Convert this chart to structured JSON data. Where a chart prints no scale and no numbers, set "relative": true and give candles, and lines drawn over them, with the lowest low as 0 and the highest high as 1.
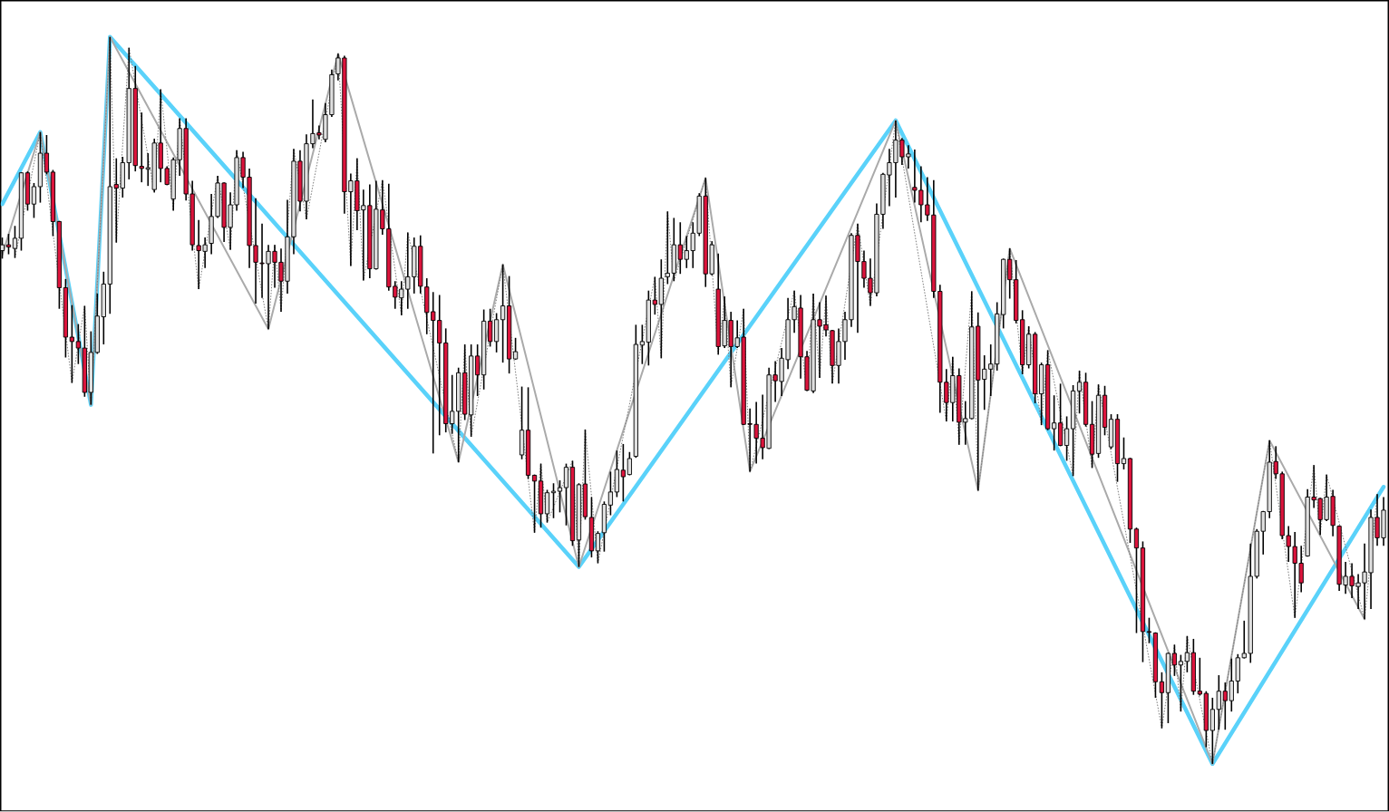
{
  "chart_data": {
    "type": "candlestick",
    "relative": true,
    "categories": [
      null,
      null,
      null,
      null,
      null,
      null,
      null,
      null,
      null,
      null,
      null,
      null,
      null,
      null,
      null,
      null,
      null,
      null,
      null,
      null,
      null,
      null,
      null,
      null,
      null,
      null,
      null,
      null,
      null,
      null,
      null,
      null,
      null,
      null,
      null,
      null,
      null,
      null,
      null,
      null,
      null,
      null,
      null,
      null,
      null,
      null,
      null,
      null,
      null,
      null,
      null,
      null,
      null,
      null,
      null,
      null,
      null,
      null,
      null,
      null,
      null,
      null,
      null,
      null,
      null,
      null,
      null,
      null,
      null,
      null,
      null,
      null,
      null,
      null,
      null,
      null,
      null,
      null,
      null,
      null,
      null,
      null,
      null,
      null,
      null,
      null,
      null,
      null,
      null,
      null,
      null,
      null,
      null,
      null,
      null,
      null,
      null,
      null,
      null,
      null,
      null,
      null,
      null,
      null,
      null,
      null,
      null,
      null,
      null,
      null,
      null,
      null,
      null,
      null,
      null,
      null,
      null,
      null,
      null,
      null,
      null,
      null,
      null,
      null,
      null,
      null,
      null,
      null,
      null,
      null,
      null,
      null,
      null,
      null,
      null,
      null,
      null,
      null,
      null,
      null,
      null,
      null,
      null,
      null,
      null,
      null,
      null,
      null,
      null,
      null,
      null,
      null,
      null,
      null,
      null,
      null,
      null,
      null,
      null,
      null,
      null,
      null,
      null,
      null,
      null,
      null,
      null,
      null,
      null,
      null,
      null,
      null,
      null,
      null,
      null,
      null,
      null,
      null,
      null,
      null,
      null,
      null,
      null,
      null,
      null,
      null,
      null,
      null,
      null,
      null,
      null,
      null,
      null,
      null,
      null,
      null,
      null,
      null,
      null,
      null,
      null,
      null,
      null,
      null,
      null,
      null,
      null,
      null,
      null,
      null,
      null,
      null,
      null,
      null,
      null,
      null,
      null,
      null,
      null
    ],
    "ohlc": [
      [
        0.706,
        0.724,
        0.695,
        0.714
      ],
      [
        0.714,
        0.729,
        0.701,
        0.711
      ],
      [
        0.709,
        0.74,
        0.696,
        0.723
      ],
      [
        0.723,
        0.814,
        0.706,
        0.813
      ],
      [
        0.813,
        0.815,
        0.761,
        0.77
      ],
      [
        0.77,
        0.799,
        0.751,
        0.794
      ],
      [
        0.794,
        0.869,
        0.772,
        0.84
      ],
      [
        0.84,
        0.865,
        0.811,
        0.814
      ],
      [
        0.814,
        0.817,
        0.726,
        0.746
      ],
      [
        0.746,
        0.747,
        0.626,
        0.655
      ],
      [
        0.655,
        0.667,
        0.559,
        0.587
      ],
      [
        0.587,
        0.631,
        0.524,
        0.581
      ],
      [
        0.581,
        0.605,
        0.55,
        0.572
      ],
      [
        0.572,
        0.63,
        0.505,
        0.511
      ],
      [
        0.511,
        0.595,
        0.494,
        0.566
      ],
      [
        0.566,
        0.647,
        0.564,
        0.616
      ],
      [
        0.615,
        0.677,
        0.577,
        0.66
      ],
      [
        0.66,
        1.0,
        0.619,
        0.794
      ],
      [
        0.797,
        0.833,
        0.717,
        0.792
      ],
      [
        0.792,
        0.835,
        0.779,
        0.827
      ],
      [
        0.827,
        0.985,
        0.804,
        0.929
      ],
      [
        0.929,
        0.96,
        0.815,
        0.823
      ],
      [
        0.822,
        0.896,
        0.8,
        0.819
      ],
      [
        0.818,
        0.84,
        0.795,
        0.82
      ],
      [
        0.79,
        0.86,
        0.786,
        0.854
      ],
      [
        0.854,
        0.928,
        0.8,
        0.819
      ],
      [
        0.819,
        0.822,
        0.796,
        0.797
      ],
      [
        0.777,
        0.834,
        0.761,
        0.831
      ],
      [
        0.831,
        0.888,
        0.809,
        0.874
      ],
      [
        0.874,
        0.888,
        0.775,
        0.784
      ],
      [
        0.784,
        0.802,
        0.706,
        0.714
      ],
      [
        0.713,
        0.748,
        0.653,
        0.706
      ],
      [
        0.705,
        0.724,
        0.682,
        0.714
      ],
      [
        0.716,
        0.784,
        0.701,
        0.753
      ],
      [
        0.753,
        0.809,
        0.751,
        0.799
      ],
      [
        0.799,
        0.8,
        0.718,
        0.738
      ],
      [
        0.738,
        0.786,
        0.707,
        0.769
      ],
      [
        0.769,
        0.844,
        0.761,
        0.834
      ],
      [
        0.834,
        0.842,
        0.792,
        0.807
      ],
      [
        0.807,
        0.819,
        0.682,
        0.713
      ],
      [
        0.713,
        0.778,
        0.633,
        0.69
      ],
      [
        0.689,
        0.743,
        0.641,
        0.688
      ],
      [
        0.688,
        0.714,
        0.598,
        0.705
      ],
      [
        0.705,
        0.714,
        0.655,
        0.69
      ],
      [
        0.69,
        0.709,
        0.622,
        0.664
      ],
      [
        0.664,
        0.776,
        0.647,
        0.725
      ],
      [
        0.725,
        0.846,
        0.701,
        0.829
      ],
      [
        0.829,
        0.844,
        0.76,
        0.774
      ],
      [
        0.774,
        0.866,
        0.749,
        0.853
      ],
      [
        0.853,
        0.914,
        0.847,
        0.867
      ],
      [
        0.868,
        0.878,
        0.859,
        0.865
      ],
      [
        0.859,
        0.909,
        0.855,
        0.893
      ],
      [
        0.893,
        0.955,
        0.89,
        0.948
      ],
      [
        0.949,
        0.977,
        0.94,
        0.971
      ],
      [
        0.971,
        0.974,
        0.757,
        0.787
      ],
      [
        0.787,
        0.812,
        0.685,
        0.802
      ],
      [
        0.802,
        0.833,
        0.734,
        0.761
      ],
      [
        0.762,
        0.79,
        0.665,
        0.768
      ],
      [
        0.768,
        0.797,
        0.668,
        0.681
      ],
      [
        0.681,
        0.802,
        0.68,
        0.763
      ],
      [
        0.762,
        0.803,
        0.728,
        0.736
      ],
      [
        0.736,
        0.798,
        0.651,
        0.656
      ],
      [
        0.657,
        0.664,
        0.626,
        0.642
      ],
      [
        0.641,
        0.664,
        0.617,
        0.653
      ],
      [
        0.653,
        0.731,
        0.626,
        0.67
      ],
      [
        0.67,
        0.724,
        0.647,
        0.712
      ],
      [
        0.712,
        0.727,
        0.647,
        0.657
      ],
      [
        0.656,
        0.668,
        0.591,
        0.621
      ],
      [
        0.622,
        0.649,
        0.427,
        0.61
      ],
      [
        0.61,
        0.645,
        0.452,
        0.579
      ],
      [
        0.579,
        0.599,
        0.456,
        0.468
      ],
      [
        0.468,
        0.535,
        0.454,
        0.485
      ],
      [
        0.485,
        0.545,
        0.415,
        0.538
      ],
      [
        0.538,
        0.577,
        0.473,
        0.481
      ],
      [
        0.48,
        0.577,
        0.45,
        0.561
      ],
      [
        0.561,
        0.577,
        0.506,
        0.535
      ],
      [
        0.535,
        0.625,
        0.515,
        0.609
      ],
      [
        0.609,
        0.626,
        0.574,
        0.581
      ],
      [
        0.581,
        0.62,
        0.566,
        0.611
      ],
      [
        0.611,
        0.687,
        0.552,
        0.63
      ],
      [
        0.63,
        0.671,
        0.537,
        0.557
      ],
      [
        0.557,
        0.586,
        0.556,
        0.567
      ],
      [
        0.425,
        0.519,
        0.419,
        0.459
      ],
      [
        0.459,
        0.518,
        0.392,
        0.397
      ],
      [
        0.397,
        0.398,
        0.318,
        0.389
      ],
      [
        0.389,
        0.413,
        0.325,
        0.344
      ],
      [
        0.344,
        0.377,
        0.332,
        0.373
      ],
      [
        0.373,
        0.386,
        0.338,
        0.375
      ],
      [
        0.375,
        0.39,
        0.346,
        0.38
      ],
      [
        0.38,
        0.413,
        0.328,
        0.408
      ],
      [
        0.408,
        0.417,
        0.3,
        0.307
      ],
      [
        0.308,
        0.386,
        0.271,
        0.384
      ],
      [
        0.385,
        0.46,
        0.336,
        0.34
      ],
      [
        0.339,
        0.367,
        0.284,
        0.293
      ],
      [
        0.293,
        0.32,
        0.276,
        0.317
      ],
      [
        0.318,
        0.361,
        0.292,
        0.357
      ],
      [
        0.356,
        0.402,
        0.342,
        0.374
      ],
      [
        0.374,
        0.431,
        0.367,
        0.405
      ],
      [
        0.404,
        0.44,
        0.361,
        0.395
      ],
      [
        0.398,
        0.429,
        0.397,
        0.42
      ],
      [
        0.423,
        0.604,
        0.421,
        0.577
      ],
      [
        0.576,
        0.604,
        0.55,
        0.581
      ],
      [
        0.58,
        0.651,
        0.548,
        0.638
      ],
      [
        0.638,
        0.67,
        0.618,
        0.632
      ],
      [
        0.632,
        0.694,
        0.558,
        0.668
      ],
      [
        0.67,
        0.76,
        0.66,
        0.675
      ],
      [
        0.675,
        0.751,
        0.664,
        0.714
      ],
      [
        0.714,
        0.745,
        0.674,
        0.694
      ],
      [
        0.694,
        0.726,
        0.682,
        0.706
      ],
      [
        0.706,
        0.745,
        0.682,
        0.73
      ],
      [
        0.73,
        0.785,
        0.726,
        0.781
      ],
      [
        0.781,
        0.806,
        0.656,
        0.674
      ],
      [
        0.674,
        0.719,
        0.672,
        0.714
      ],
      [
        0.653,
        0.702,
        0.563,
        0.574
      ],
      [
        0.575,
        0.643,
        0.572,
        0.61
      ],
      [
        0.61,
        0.622,
        0.518,
        0.574
      ],
      [
        0.574,
        0.61,
        0.572,
        0.586
      ],
      [
        0.587,
        0.626,
        0.466,
        0.467
      ],
      [
        0.468,
        0.489,
        0.402,
        0.467
      ],
      [
        0.467,
        0.498,
        0.413,
        0.448
      ],
      [
        0.448,
        0.508,
        0.419,
        0.435
      ],
      [
        0.434,
        0.545,
        0.433,
        0.535
      ],
      [
        0.535,
        0.554,
        0.498,
        0.527
      ],
      [
        0.526,
        0.572,
        0.506,
        0.558
      ],
      [
        0.556,
        0.641,
        0.543,
        0.611
      ],
      [
        0.611,
        0.651,
        0.593,
        0.629
      ],
      [
        0.627,
        0.645,
        0.53,
        0.56
      ],
      [
        0.56,
        0.568,
        0.513,
        0.514
      ],
      [
        0.513,
        0.647,
        0.51,
        0.611
      ],
      [
        0.611,
        0.635,
        0.531,
        0.602
      ],
      [
        0.604,
        0.644,
        0.588,
        0.597
      ],
      [
        0.596,
        0.597,
        0.523,
        0.548
      ],
      [
        0.548,
        0.599,
        0.523,
        0.581
      ],
      [
        0.581,
        0.622,
        0.556,
        0.611
      ],
      [
        0.611,
        0.73,
        0.601,
        0.727
      ],
      [
        0.727,
        0.743,
        0.593,
        0.691
      ],
      [
        0.691,
        0.706,
        0.655,
        0.668
      ],
      [
        0.668,
        0.695,
        0.63,
        0.648
      ],
      [
        0.648,
        0.771,
        0.643,
        0.756
      ],
      [
        0.756,
        0.813,
        0.736,
        0.811
      ],
      [
        0.81,
        0.846,
        0.767,
        0.827
      ],
      [
        0.827,
        0.885,
        0.779,
        0.858
      ],
      [
        0.858,
        0.861,
        0.824,
        0.835
      ],
      [
        0.835,
        0.851,
        0.819,
        0.839
      ],
      [
        0.793,
        0.845,
        0.772,
        0.789
      ],
      [
        0.789,
        0.822,
        0.745,
        0.769
      ],
      [
        0.769,
        0.807,
        0.747,
        0.755
      ],
      [
        0.755,
        0.803,
        0.641,
        0.65
      ],
      [
        0.65,
        0.659,
        0.483,
        0.525
      ],
      [
        0.525,
        0.543,
        0.471,
        0.497
      ],
      [
        0.497,
        0.56,
        0.471,
        0.534
      ],
      [
        0.534,
        0.544,
        0.439,
        0.47
      ],
      [
        0.47,
        0.499,
        0.439,
        0.475
      ],
      [
        0.475,
        0.65,
        0.474,
        0.601
      ],
      [
        0.602,
        0.621,
        0.376,
        0.528
      ],
      [
        0.529,
        0.562,
        0.487,
        0.543
      ],
      [
        0.543,
        0.577,
        0.506,
        0.55
      ],
      [
        0.55,
        0.635,
        0.541,
        0.619
      ],
      [
        0.618,
        0.695,
        0.599,
        0.694
      ],
      [
        0.694,
        0.709,
        0.64,
        0.666
      ],
      [
        0.666,
        0.693,
        0.606,
        0.61
      ],
      [
        0.611,
        0.624,
        0.536,
        0.549
      ],
      [
        0.549,
        0.602,
        0.544,
        0.591
      ],
      [
        0.591,
        0.594,
        0.496,
        0.509
      ],
      [
        0.509,
        0.552,
        0.466,
        0.549
      ],
      [
        0.549,
        0.569,
        0.459,
        0.461
      ],
      [
        0.461,
        0.507,
        0.431,
        0.469
      ],
      [
        0.469,
        0.523,
        0.437,
        0.438
      ],
      [
        0.438,
        0.478,
        0.417,
        0.461
      ],
      [
        0.461,
        0.521,
        0.396,
        0.513
      ],
      [
        0.513,
        0.541,
        0.482,
        0.525
      ],
      [
        0.525,
        0.538,
        0.464,
        0.467
      ],
      [
        0.467,
        0.499,
        0.407,
        0.426
      ],
      [
        0.427,
        0.522,
        0.421,
        0.507
      ],
      [
        0.507,
        0.52,
        0.452,
        0.463
      ],
      [
        0.436,
        0.481,
        0.433,
        0.474
      ],
      [
        0.474,
        0.481,
        0.388,
        0.413
      ],
      [
        0.413,
        0.449,
        0.405,
        0.42
      ],
      [
        0.42,
        0.421,
        0.304,
        0.323
      ],
      [
        0.323,
        0.325,
        0.18,
        0.297
      ],
      [
        0.297,
        0.306,
        0.14,
        0.182
      ],
      [
        0.182,
        0.201,
        0.166,
        0.181
      ],
      [
        0.18,
        0.181,
        0.091,
        0.113
      ],
      [
        0.113,
        0.126,
        0.049,
        0.098
      ],
      [
        0.098,
        0.153,
        0.056,
        0.152
      ],
      [
        0.152,
        0.164,
        0.121,
        0.136
      ],
      [
        0.136,
        0.15,
        0.072,
        0.141
      ],
      [
        0.141,
        0.176,
        0.126,
        0.153
      ],
      [
        0.153,
        0.172,
        0.095,
        0.1
      ],
      [
        0.1,
        0.146,
        0.094,
        0.096
      ],
      [
        0.097,
        0.1,
        0.023,
        0.046
      ],
      [
        0.046,
        0.091,
        0.0,
        0.075
      ],
      [
        0.075,
        0.122,
        0.047,
        0.1
      ],
      [
        0.1,
        0.112,
        0.047,
        0.087
      ],
      [
        0.087,
        0.145,
        0.072,
        0.114
      ],
      [
        0.114,
        0.151,
        0.097,
        0.146
      ],
      [
        0.146,
        0.197,
        0.145,
        0.152
      ],
      [
        0.152,
        0.303,
        0.139,
        0.258
      ],
      [
        0.258,
        0.323,
        0.255,
        0.32
      ],
      [
        0.32,
        0.348,
        0.288,
        0.347
      ],
      [
        0.347,
        0.445,
        0.338,
        0.415
      ],
      [
        0.416,
        0.437,
        0.392,
        0.399
      ],
      [
        0.399,
        0.402,
        0.309,
        0.314
      ],
      [
        0.314,
        0.327,
        0.278,
        0.299
      ],
      [
        0.299,
        0.319,
        0.201,
        0.276
      ],
      [
        0.276,
        0.3,
        0.236,
        0.249
      ],
      [
        0.286,
        0.378,
        0.285,
        0.367
      ],
      [
        0.367,
        0.411,
        0.352,
        0.363
      ],
      [
        0.365,
        0.366,
        0.315,
        0.336
      ],
      [
        0.336,
        0.398,
        0.334,
        0.367
      ],
      [
        0.368,
        0.377,
        0.313,
        0.328
      ],
      [
        0.327,
        0.328,
        0.238,
        0.247
      ],
      [
        0.246,
        0.278,
        0.234,
        0.258
      ],
      [
        0.258,
        0.276,
        0.228,
        0.245
      ],
      [
        0.244,
        0.261,
        0.213,
        0.249
      ],
      [
        0.249,
        0.303,
        0.199,
        0.264
      ],
      [
        0.263,
        0.35,
        0.213,
        0.339
      ],
      [
        0.339,
        0.371,
        0.3,
        0.311
      ],
      [
        0.311,
        0.367,
        0.3,
        0.349
      ]
    ],
    "colors": [
      "#e0e0e0",
      "#dc143c",
      "#e0e0e0",
      "#e0e0e0",
      "#dc143c",
      "#e0e0e0",
      "#e0e0e0",
      "#dc143c",
      "#dc143c",
      "#dc143c",
      "#dc143c",
      "#dc143c",
      "#dc143c",
      "#dc143c",
      "#e0e0e0",
      "#e0e0e0",
      "#e0e0e0",
      "#e0e0e0",
      "#dc143c",
      "#e0e0e0",
      "#e0e0e0",
      "#dc143c",
      "#dc143c",
      "#e0e0e0",
      "#e0e0e0",
      "#dc143c",
      "#dc143c",
      "#e0e0e0",
      "#e0e0e0",
      "#dc143c",
      "#dc143c",
      "#dc143c",
      "#e0e0e0",
      "#e0e0e0",
      "#e0e0e0",
      "#dc143c",
      "#e0e0e0",
      "#e0e0e0",
      "#dc143c",
      "#dc143c",
      "#dc143c",
      "#dc143c",
      "#e0e0e0",
      "#dc143c",
      "#dc143c",
      "#e0e0e0",
      "#e0e0e0",
      "#dc143c",
      "#e0e0e0",
      "#e0e0e0",
      "#dc143c",
      "#e0e0e0",
      "#e0e0e0",
      "#e0e0e0",
      "#dc143c",
      "#e0e0e0",
      "#dc143c",
      "#e0e0e0",
      "#dc143c",
      "#e0e0e0",
      "#dc143c",
      "#dc143c",
      "#dc143c",
      "#e0e0e0",
      "#e0e0e0",
      "#e0e0e0",
      "#dc143c",
      "#dc143c",
      "#dc143c",
      "#dc143c",
      "#dc143c",
      "#e0e0e0",
      "#e0e0e0",
      "#dc143c",
      "#e0e0e0",
      "#dc143c",
      "#e0e0e0",
      "#dc143c",
      "#e0e0e0",
      "#e0e0e0",
      "#dc143c",
      "#e0e0e0",
      "#e0e0e0",
      "#dc143c",
      "#dc143c",
      "#dc143c",
      "#e0e0e0",
      "#e0e0e0",
      "#e0e0e0",
      "#e0e0e0",
      "#dc143c",
      "#e0e0e0",
      "#dc143c",
      "#dc143c",
      "#e0e0e0",
      "#e0e0e0",
      "#e0e0e0",
      "#e0e0e0",
      "#dc143c",
      "#e0e0e0",
      "#e0e0e0",
      "#e0e0e0",
      "#e0e0e0",
      "#dc143c",
      "#e0e0e0",
      "#e0e0e0",
      "#e0e0e0",
      "#dc143c",
      "#e0e0e0",
      "#e0e0e0",
      "#e0e0e0",
      "#dc143c",
      "#e0e0e0",
      "#dc143c",
      "#e0e0e0",
      "#dc143c",
      "#e0e0e0",
      "#dc143c",
      "#dc143c",
      "#dc143c",
      "#dc143c",
      "#e0e0e0",
      "#dc143c",
      "#e0e0e0",
      "#e0e0e0",
      "#e0e0e0",
      "#dc143c",
      "#dc143c",
      "#e0e0e0",
      "#dc143c",
      "#dc143c",
      "#dc143c",
      "#e0e0e0",
      "#e0e0e0",
      "#e0e0e0",
      "#dc143c",
      "#dc143c",
      "#dc143c",
      "#e0e0e0",
      "#e0e0e0",
      "#e0e0e0",
      "#e0e0e0",
      "#dc143c",
      "#e0e0e0",
      "#dc143c",
      "#dc143c",
      "#dc143c",
      "#dc143c",
      "#dc143c",
      "#dc143c",
      "#e0e0e0",
      "#dc143c",
      "#e0e0e0",
      "#e0e0e0",
      "#dc143c",
      "#e0e0e0",
      "#e0e0e0",
      "#e0e0e0",
      "#e0e0e0",
      "#dc143c",
      "#dc143c",
      "#dc143c",
      "#e0e0e0",
      "#dc143c",
      "#e0e0e0",
      "#dc143c",
      "#e0e0e0",
      "#dc143c",
      "#e0e0e0",
      "#e0e0e0",
      "#e0e0e0",
      "#dc143c",
      "#dc143c",
      "#e0e0e0",
      "#dc143c",
      "#e0e0e0",
      "#dc143c",
      "#e0e0e0",
      "#dc143c",
      "#dc143c",
      "#dc143c",
      "#dc143c",
      "#dc143c",
      "#dc143c",
      "#e0e0e0",
      "#dc143c",
      "#e0e0e0",
      "#e0e0e0",
      "#dc143c",
      "#dc143c",
      "#dc143c",
      "#e0e0e0",
      "#e0e0e0",
      "#dc143c",
      "#e0e0e0",
      "#e0e0e0",
      "#e0e0e0",
      "#e0e0e0",
      "#e0e0e0",
      "#e0e0e0",
      "#e0e0e0",
      "#dc143c",
      "#dc143c",
      "#dc143c",
      "#dc143c",
      "#dc143c",
      "#e0e0e0",
      "#dc143c",
      "#dc143c",
      "#e0e0e0",
      "#dc143c",
      "#dc143c",
      "#e0e0e0",
      "#dc143c",
      "#e0e0e0",
      "#e0e0e0",
      "#e0e0e0",
      "#dc143c",
      "#e0e0e0"
    ],
    "series": [
      {
        "type": "line",
        "color": "#5ad2fa",
        "line_style": "solid",
        "values": [
          0.77,
          null,
          null,
          null,
          null,
          null,
          0.869,
          null,
          null,
          null,
          null,
          null,
          null,
          null,
          0.494,
          null,
          null,
          1.0,
          null,
          null,
          null,
          null,
          null,
          null,
          null,
          null,
          null,
          null,
          null,
          null,
          null,
          null,
          null,
          null,
          null,
          null,
          null,
          null,
          null,
          null,
          null,
          null,
          null,
          null,
          null,
          null,
          null,
          null,
          null,
          null,
          null,
          null,
          null,
          null,
          null,
          null,
          null,
          null,
          null,
          null,
          null,
          null,
          null,
          null,
          null,
          null,
          null,
          null,
          null,
          null,
          null,
          null,
          null,
          null,
          null,
          null,
          null,
          null,
          null,
          null,
          null,
          null,
          null,
          null,
          null,
          null,
          null,
          null,
          null,
          null,
          null,
          0.271,
          null,
          null,
          null,
          null,
          null,
          null,
          null,
          null,
          null,
          null,
          null,
          null,
          null,
          null,
          null,
          null,
          null,
          null,
          null,
          null,
          null,
          null,
          null,
          null,
          null,
          null,
          null,
          null,
          null,
          null,
          null,
          null,
          null,
          null,
          null,
          null,
          null,
          null,
          null,
          null,
          null,
          null,
          null,
          null,
          null,
          null,
          null,
          null,
          null,
          0.885,
          null,
          null,
          null,
          null,
          null,
          null,
          null,
          null,
          null,
          null,
          null,
          null,
          null,
          null,
          null,
          null,
          null,
          null,
          null,
          null,
          null,
          null,
          null,
          null,
          null,
          null,
          null,
          null,
          null,
          null,
          null,
          null,
          null,
          null,
          null,
          null,
          null,
          null,
          null,
          null,
          null,
          null,
          null,
          null,
          null,
          null,
          null,
          null,
          null,
          0.0,
          null,
          null,
          null,
          null,
          null,
          null,
          null,
          null,
          null,
          null,
          null,
          null,
          null,
          null,
          null,
          null,
          null,
          null,
          null,
          null,
          null,
          null,
          null,
          null,
          null,
          null,
          0.381
        ]
      },
      {
        "type": "line",
        "color": "#aaaaaa",
        "line_style": "solid",
        "values": [
          0.7,
          null,
          null,
          null,
          null,
          null,
          0.869,
          null,
          null,
          null,
          null,
          null,
          null,
          null,
          0.494,
          null,
          null,
          1.0,
          null,
          null,
          null,
          null,
          null,
          null,
          null,
          null,
          null,
          null,
          null,
          null,
          null,
          null,
          null,
          null,
          null,
          null,
          null,
          null,
          null,
          null,
          null,
          null,
          0.598,
          null,
          null,
          null,
          null,
          null,
          null,
          null,
          null,
          null,
          null,
          0.977,
          null,
          null,
          null,
          null,
          null,
          null,
          null,
          null,
          null,
          null,
          null,
          null,
          null,
          null,
          null,
          null,
          null,
          null,
          0.415,
          null,
          null,
          null,
          null,
          null,
          null,
          0.687,
          null,
          null,
          null,
          null,
          null,
          null,
          null,
          null,
          null,
          null,
          null,
          0.271,
          null,
          null,
          null,
          null,
          null,
          null,
          null,
          null,
          null,
          null,
          null,
          null,
          null,
          null,
          null,
          null,
          null,
          null,
          null,
          0.806,
          null,
          null,
          null,
          null,
          null,
          null,
          0.402,
          null,
          null,
          null,
          null,
          null,
          null,
          null,
          null,
          null,
          null,
          null,
          null,
          null,
          null,
          null,
          null,
          null,
          null,
          null,
          null,
          null,
          null,
          0.885,
          null,
          null,
          null,
          null,
          null,
          null,
          null,
          null,
          null,
          null,
          null,
          null,
          0.376,
          null,
          null,
          null,
          null,
          0.709,
          null,
          null,
          null,
          null,
          null,
          null,
          null,
          null,
          null,
          null,
          null,
          null,
          null,
          null,
          null,
          null,
          null,
          null,
          null,
          null,
          null,
          null,
          null,
          null,
          null,
          null,
          null,
          null,
          null,
          null,
          null,
          0.0,
          null,
          null,
          null,
          null,
          null,
          null,
          null,
          null,
          0.445,
          null,
          null,
          null,
          null,
          null,
          null,
          null,
          null,
          null,
          null,
          null,
          null,
          null,
          null,
          0.199,
          null,
          null,
          null
        ]
      },
      {
        "type": "line",
        "color": "#808080",
        "line_style": "dotted",
        "values": [
          null,
          null,
          0.696,
          null,
          null,
          null,
          0.869,
          null,
          null,
          null,
          null,
          0.524,
          null,
          0.63,
          0.494,
          null,
          null,
          1.0,
          0.717,
          null,
          0.985,
          null,
          null,
          null,
          0.786,
          0.928,
          null,
          0.761,
          0.888,
          null,
          null,
          0.653,
          null,
          null,
          0.809,
          null,
          0.707,
          0.844,
          null,
          null,
          null,
          null,
          0.598,
          0.714,
          0.622,
          null,
          0.846,
          null,
          0.749,
          null,
          null,
          null,
          null,
          0.977,
          null,
          0.685,
          0.833,
          0.665,
          null,
          null,
          0.803,
          null,
          null,
          0.617,
          0.731,
          null,
          null,
          null,
          null,
          null,
          null,
          null,
          0.415,
          0.577,
          0.45,
          null,
          null,
          null,
          null,
          0.687,
          null,
          null,
          null,
          null,
          0.318,
          0.413,
          0.332,
          null,
          null,
          null,
          0.417,
          0.271,
          0.46,
          null,
          0.276,
          null,
          null,
          null,
          null,
          null,
          null,
          null,
          null,
          0.67,
          0.558,
          0.76,
          0.664,
          null,
          null,
          null,
          null,
          0.806,
          null,
          0.563,
          0.643,
          0.518,
          null,
          0.626,
          0.402,
          null,
          null,
          null,
          null,
          null,
          null,
          0.651,
          null,
          0.513,
          0.647,
          0.531,
          0.644,
          0.523,
          null,
          null,
          null,
          0.743,
          null,
          0.63,
          null,
          null,
          null,
          0.885,
          null,
          null,
          null,
          null,
          null,
          null,
          null,
          0.471,
          0.56,
          0.439,
          null,
          0.65,
          0.376,
          null,
          null,
          null,
          null,
          0.709,
          null,
          0.536,
          0.602,
          null,
          0.466,
          0.569,
          null,
          null,
          null,
          0.396,
          0.541,
          null,
          0.407,
          0.522,
          null,
          null,
          null,
          null,
          null,
          null,
          null,
          null,
          null,
          0.049,
          null,
          0.164,
          0.072,
          0.176,
          null,
          null,
          null,
          0.0,
          null,
          null,
          null,
          null,
          null,
          null,
          null,
          null,
          0.445,
          null,
          null,
          null,
          0.201,
          null,
          null,
          0.411,
          0.315,
          0.398,
          null,
          null,
          null,
          null,
          null,
          0.199,
          null,
          0.371,
          null
        ]
      }
    ]
  }
}
